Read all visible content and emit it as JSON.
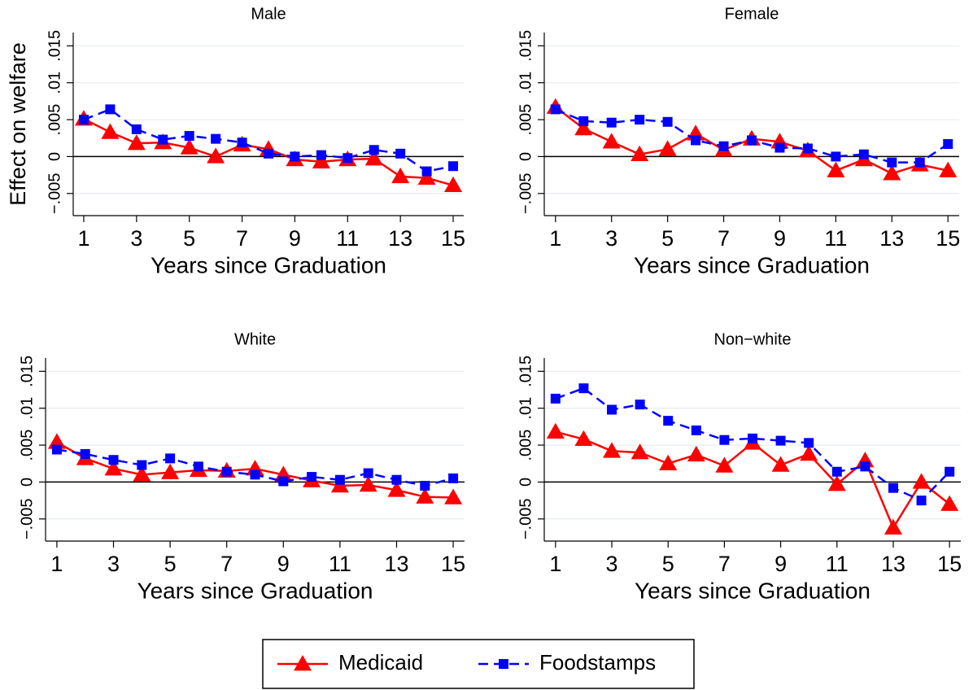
{
  "chart_data": [
    {
      "type": "line",
      "title": "Male",
      "xlabel": "Years since Graduation",
      "ylabel": "Effect on welfare",
      "x": [
        1,
        2,
        3,
        4,
        5,
        6,
        7,
        8,
        9,
        10,
        11,
        12,
        13,
        14,
        15
      ],
      "series": [
        {
          "name": "Medicaid",
          "color": "#ff0000",
          "marker": "triangle",
          "dashed": false,
          "values": [
            0.0051,
            0.0033,
            0.0018,
            0.0019,
            0.0012,
            0.0,
            0.0016,
            0.001,
            -0.0004,
            -0.0007,
            -0.0004,
            -0.0003,
            -0.0027,
            -0.0029,
            -0.0039
          ]
        },
        {
          "name": "Foodstamps",
          "color": "#0000ff",
          "marker": "square",
          "dashed": true,
          "values": [
            0.005,
            0.0064,
            0.0037,
            0.0023,
            0.0028,
            0.0024,
            0.0019,
            0.0004,
            0.0,
            0.0002,
            -0.0002,
            0.0009,
            0.0004,
            -0.002,
            -0.0013
          ]
        }
      ],
      "xlim": [
        0.6,
        15.4
      ],
      "xticks": [
        1,
        3,
        5,
        7,
        9,
        11,
        13,
        15
      ],
      "ylim": [
        -0.008,
        0.0168
      ],
      "yticks": [
        {
          "value": -0.005,
          "label": "−.005"
        },
        0,
        {
          "value": 0.005,
          "label": ".005"
        },
        {
          "value": 0.01,
          "label": ".01"
        },
        {
          "value": 0.015,
          "label": ".015"
        }
      ],
      "hline": 0,
      "grid": true
    },
    {
      "type": "line",
      "title": "Female",
      "xlabel": "Years since Graduation",
      "x": [
        1,
        2,
        3,
        4,
        5,
        6,
        7,
        8,
        9,
        10,
        11,
        12,
        13,
        14,
        15
      ],
      "series": [
        {
          "color": "#ff0000",
          "marker": "triangle",
          "dashed": false,
          "values": [
            0.0067,
            0.0038,
            0.002,
            0.0003,
            0.001,
            0.0031,
            0.0009,
            0.0024,
            0.002,
            0.0008,
            -0.0019,
            -0.0004,
            -0.0023,
            -0.0011,
            -0.0019
          ]
        },
        {
          "color": "#0000ff",
          "marker": "square",
          "dashed": true,
          "values": [
            0.0064,
            0.0048,
            0.0046,
            0.005,
            0.0047,
            0.0022,
            0.0014,
            0.0022,
            0.0012,
            0.0011,
            0.0,
            0.0003,
            -0.0008,
            -0.0008,
            0.0017
          ]
        }
      ],
      "xlim": [
        0.6,
        15.4
      ],
      "xticks": [
        1,
        3,
        5,
        7,
        9,
        11,
        13,
        15
      ],
      "ylim": [
        -0.008,
        0.0168
      ],
      "yticks": [
        {
          "value": -0.005,
          "label": "−.005"
        },
        0,
        {
          "value": 0.005,
          "label": ".005"
        },
        {
          "value": 0.01,
          "label": ".01"
        },
        {
          "value": 0.015,
          "label": ".015"
        }
      ],
      "hline": 0,
      "grid": true
    },
    {
      "type": "line",
      "title": "White",
      "xlabel": "Years since Graduation",
      "x": [
        1,
        2,
        3,
        4,
        5,
        6,
        7,
        8,
        9,
        10,
        11,
        12,
        13,
        14,
        15
      ],
      "series": [
        {
          "color": "#ff0000",
          "marker": "triangle",
          "dashed": false,
          "values": [
            0.0054,
            0.0032,
            0.0018,
            0.001,
            0.0013,
            0.0016,
            0.0015,
            0.0018,
            0.001,
            0.0002,
            -0.0005,
            -0.0004,
            -0.0011,
            -0.002,
            -0.0021
          ]
        },
        {
          "color": "#0000ff",
          "marker": "square",
          "dashed": true,
          "values": [
            0.0044,
            0.0038,
            0.003,
            0.0023,
            0.0032,
            0.0021,
            0.0014,
            0.001,
            0.0001,
            0.0007,
            0.0003,
            0.0012,
            0.0003,
            -0.0005,
            0.0005
          ]
        }
      ],
      "xlim": [
        0.6,
        15.4
      ],
      "xticks": [
        1,
        3,
        5,
        7,
        9,
        11,
        13,
        15
      ],
      "ylim": [
        -0.008,
        0.0168
      ],
      "yticks": [
        {
          "value": -0.005,
          "label": "−.005"
        },
        0,
        {
          "value": 0.005,
          "label": ".005"
        },
        {
          "value": 0.01,
          "label": ".01"
        },
        {
          "value": 0.015,
          "label": ".015"
        }
      ],
      "hline": 0,
      "grid": true
    },
    {
      "type": "line",
      "title": "Non−white",
      "xlabel": "Years since Graduation",
      "x": [
        1,
        2,
        3,
        4,
        5,
        6,
        7,
        8,
        9,
        10,
        11,
        12,
        13,
        14,
        15
      ],
      "series": [
        {
          "color": "#ff0000",
          "marker": "triangle",
          "dashed": false,
          "values": [
            0.0068,
            0.0058,
            0.0042,
            0.004,
            0.0025,
            0.0037,
            0.0022,
            0.0053,
            0.0023,
            0.0038,
            -0.0003,
            0.0029,
            -0.0062,
            0.0,
            -0.003
          ]
        },
        {
          "color": "#0000ff",
          "marker": "square",
          "dashed": true,
          "values": [
            0.0113,
            0.0127,
            0.0098,
            0.0105,
            0.0083,
            0.007,
            0.0057,
            0.0059,
            0.0056,
            0.0053,
            0.0014,
            0.0021,
            -0.0008,
            -0.0025,
            0.0014
          ]
        }
      ],
      "xlim": [
        0.6,
        15.4
      ],
      "xticks": [
        1,
        3,
        5,
        7,
        9,
        11,
        13,
        15
      ],
      "ylim": [
        -0.008,
        0.0168
      ],
      "yticks": [
        {
          "value": -0.005,
          "label": "−.005"
        },
        0,
        {
          "value": 0.005,
          "label": ".005"
        },
        {
          "value": 0.01,
          "label": ".01"
        },
        {
          "value": 0.015,
          "label": ".015"
        }
      ],
      "hline": 0,
      "grid": true
    }
  ]
}
